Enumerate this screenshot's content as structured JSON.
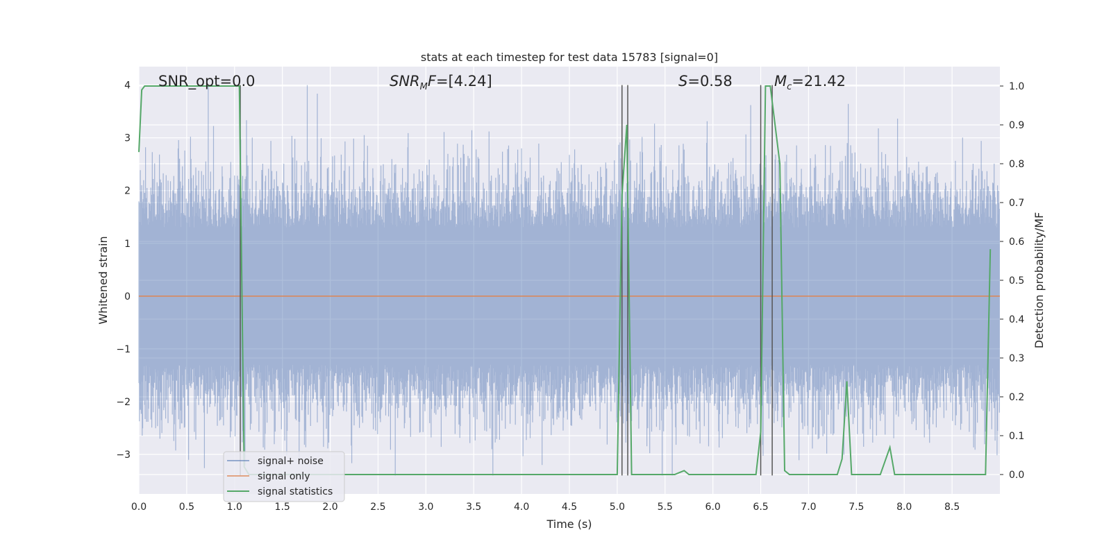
{
  "chart_data": {
    "type": "line",
    "title": "stats at each timestep for test data 15783 [signal=0]",
    "xlabel": "Time (s)",
    "ylabel_left": "Whitened strain",
    "ylabel_right": "Detection probability/MF",
    "xlim": [
      0.0,
      9.0
    ],
    "ylim_left": [
      -3.75,
      4.35
    ],
    "ylim_right": [
      -0.05,
      1.05
    ],
    "x_ticks": [
      "0.0",
      "0.5",
      "1.0",
      "1.5",
      "2.0",
      "2.5",
      "3.0",
      "3.5",
      "4.0",
      "4.5",
      "5.0",
      "5.5",
      "6.0",
      "6.5",
      "7.0",
      "7.5",
      "8.0",
      "8.5"
    ],
    "y_ticks_left": [
      "−3",
      "−2",
      "−1",
      "0",
      "1",
      "2",
      "3",
      "4"
    ],
    "y_ticks_right": [
      "0.0",
      "0.1",
      "0.2",
      "0.3",
      "0.4",
      "0.5",
      "0.6",
      "0.7",
      "0.8",
      "0.9",
      "1.0"
    ],
    "grid": true,
    "legend_position": "lower-left",
    "annotations": {
      "snr_opt": "SNR_opt=0.0",
      "snr_mf": "SNR_MF=[4.24]",
      "s": "S=0.58",
      "mc": "M_c=21.42"
    },
    "series": [
      {
        "name": "signal+ noise",
        "axis": "left",
        "color": "#4c72b0",
        "description_range": [
          -3.4,
          4.0
        ]
      },
      {
        "name": "signal only",
        "axis": "left",
        "color": "#dd8452",
        "x": [
          0.0,
          9.0
        ],
        "y": [
          0.0,
          0.0
        ]
      },
      {
        "name": "signal statistics",
        "axis": "right",
        "color": "#55a868",
        "x": [
          0.0,
          0.03,
          0.06,
          0.1,
          1.0,
          1.05,
          1.1,
          1.15,
          4.95,
          5.0,
          5.05,
          5.1,
          5.15,
          5.2,
          5.6,
          5.65,
          5.7,
          5.75,
          6.4,
          6.45,
          6.5,
          6.55,
          6.6,
          6.65,
          6.7,
          6.75,
          6.8,
          7.3,
          7.35,
          7.4,
          7.45,
          7.5,
          7.75,
          7.85,
          7.9,
          8.8,
          8.85,
          8.9
        ],
        "y": [
          0.83,
          0.99,
          1.0,
          1.0,
          1.0,
          1.0,
          0.02,
          0.0,
          0.0,
          0.0,
          0.72,
          0.9,
          0.0,
          0.0,
          0.0,
          0.005,
          0.01,
          0.0,
          0.0,
          0.0,
          0.11,
          1.0,
          1.0,
          0.9,
          0.8,
          0.01,
          0.0,
          0.0,
          0.04,
          0.24,
          0.0,
          0.0,
          0.0,
          0.07,
          0.0,
          0.0,
          0.0,
          0.58
        ]
      }
    ],
    "vertical_lines": [
      {
        "x": 1.06,
        "ymin": -3.4,
        "ymax": 4.0,
        "color": "#555555"
      },
      {
        "x": 5.05,
        "ymin": -3.4,
        "ymax": 4.0,
        "color": "#555555"
      },
      {
        "x": 5.11,
        "ymin": -3.4,
        "ymax": 4.0,
        "color": "#555555"
      },
      {
        "x": 6.5,
        "ymin": -3.4,
        "ymax": 4.0,
        "color": "#555555"
      },
      {
        "x": 6.62,
        "ymin": -3.4,
        "ymax": 4.0,
        "color": "#555555"
      }
    ],
    "colors": {
      "plot_bg": "#eaeaf2",
      "grid": "#ffffff",
      "noise": "#4c72b0",
      "signal": "#dd8452",
      "stats": "#55a868"
    }
  }
}
